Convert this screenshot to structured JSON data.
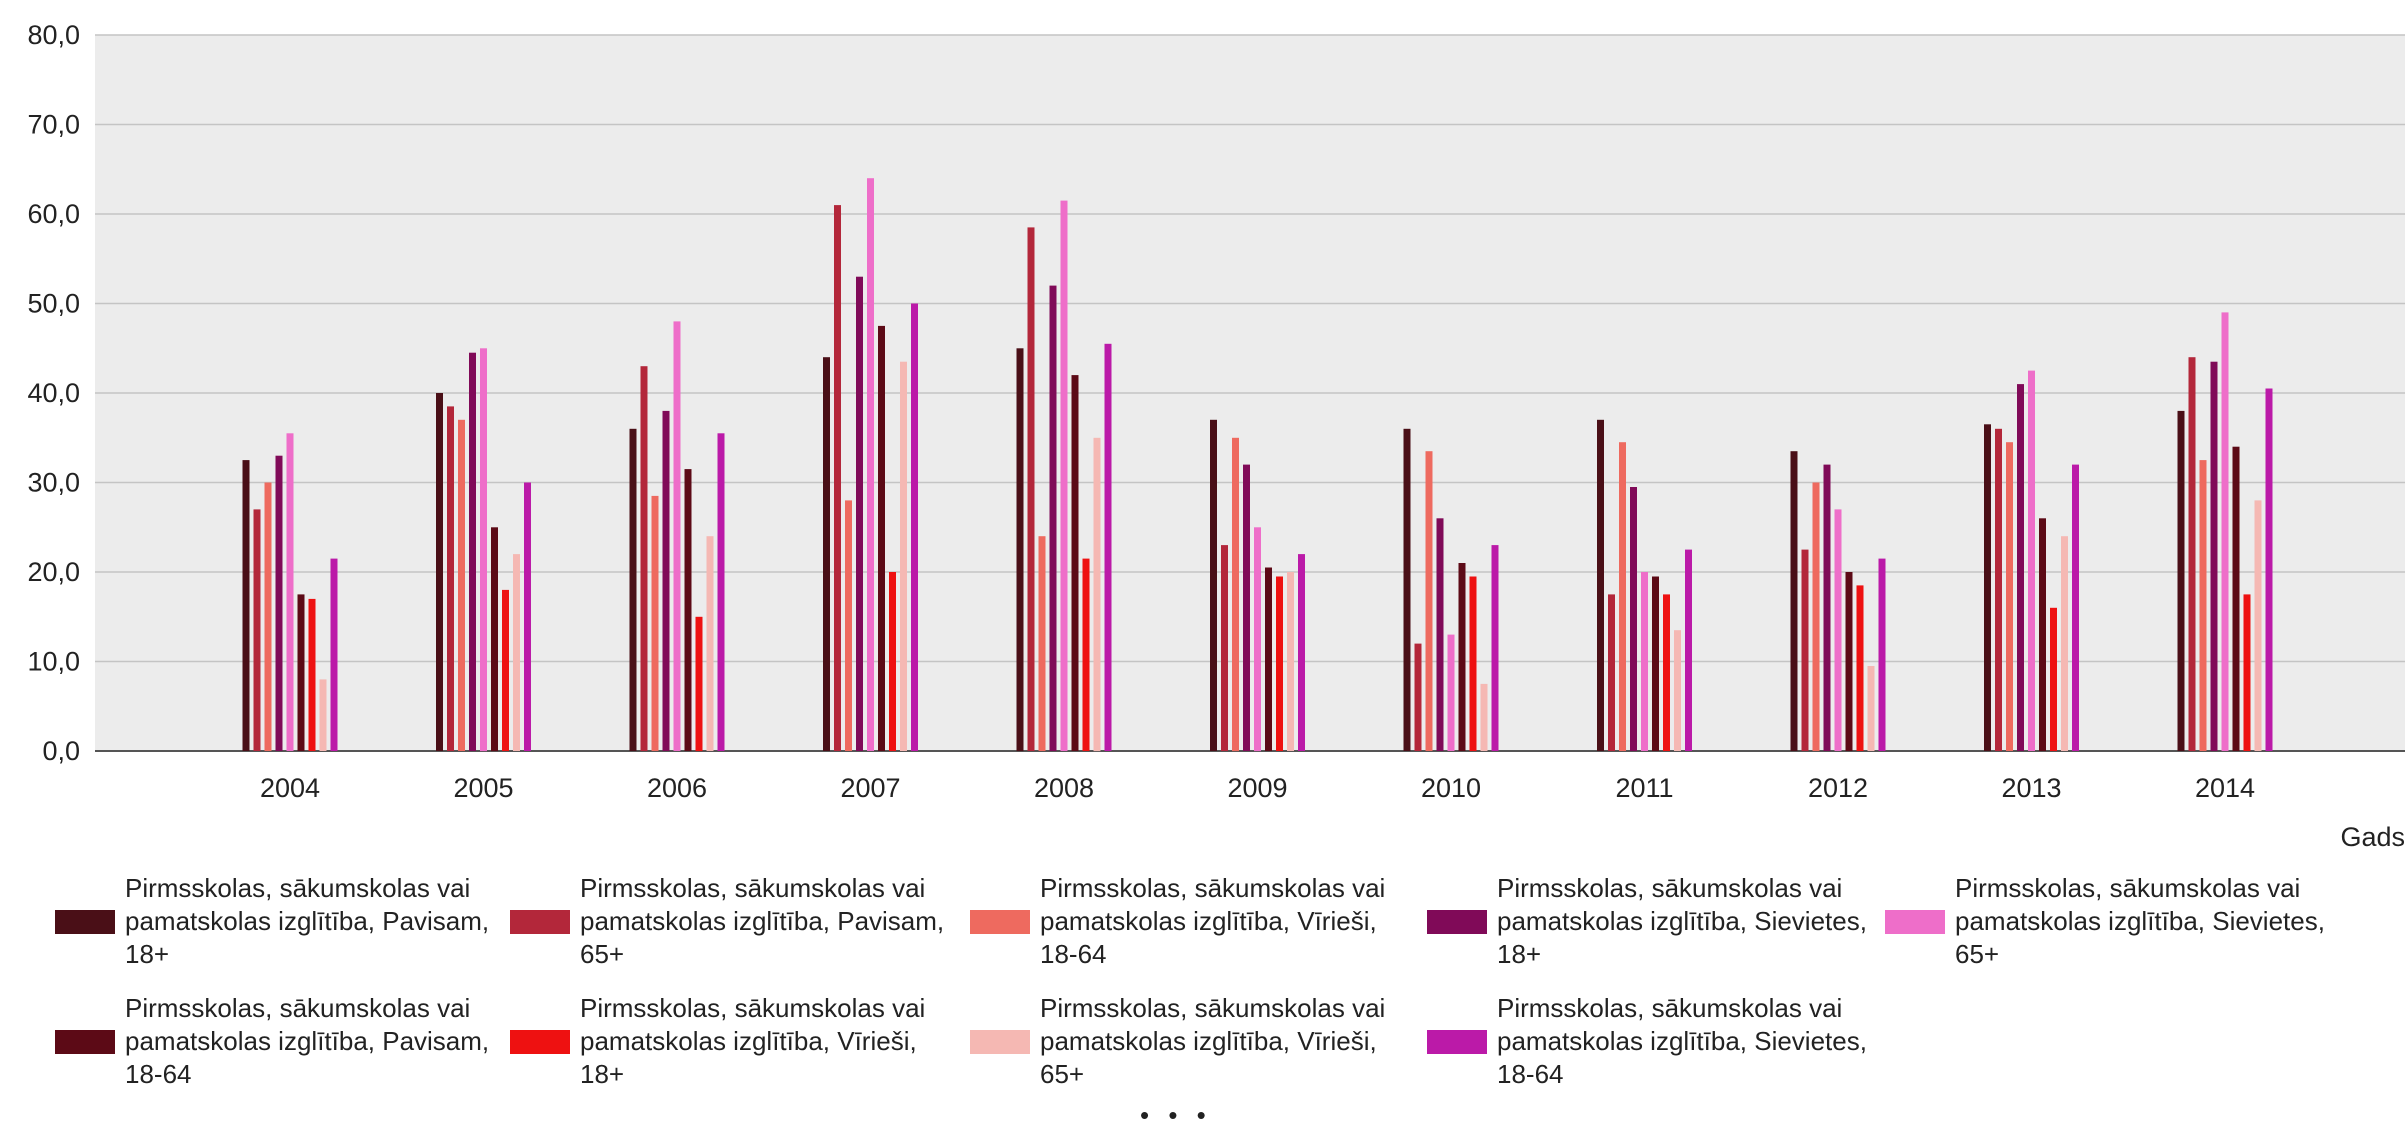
{
  "chart_data": {
    "type": "bar",
    "title": "",
    "xlabel": "Gads",
    "ylabel": "",
    "ylim": [
      0,
      80
    ],
    "yticks": [
      "0,0",
      "10,0",
      "20,0",
      "30,0",
      "40,0",
      "50,0",
      "60,0",
      "70,0",
      "80,0"
    ],
    "grid": true,
    "legend_position": "bottom",
    "more_indicator": "• • •",
    "categories": [
      "2004",
      "2005",
      "2006",
      "2007",
      "2008",
      "2009",
      "2010",
      "2011",
      "2012",
      "2013",
      "2014"
    ],
    "series_colors": [
      "#4a0f17",
      "#b3273a",
      "#ee6a5f",
      "#800a58",
      "#ee6ec9",
      "#5c0a16",
      "#ee1111",
      "#f5b8b3",
      "#bb1aa8"
    ],
    "series": [
      {
        "name": "Pirmsskolas, sākumskolas vai pamatskolas izglītība, Pavisam, 18+",
        "values": [
          32.5,
          40.0,
          36.0,
          44.0,
          45.0,
          37.0,
          36.0,
          37.0,
          33.5,
          36.5,
          38.0
        ]
      },
      {
        "name": "Pirmsskolas, sākumskolas vai pamatskolas izglītība, Pavisam, 65+",
        "values": [
          27.0,
          38.5,
          43.0,
          61.0,
          58.5,
          23.0,
          12.0,
          17.5,
          22.5,
          36.0,
          44.0
        ]
      },
      {
        "name": "Pirmsskolas, sākumskolas vai pamatskolas izglītība, Vīrieši, 18-64",
        "values": [
          30.0,
          37.0,
          28.5,
          28.0,
          24.0,
          35.0,
          33.5,
          34.5,
          30.0,
          34.5,
          32.5
        ]
      },
      {
        "name": "Pirmsskolas, sākumskolas vai pamatskolas izglītība, Sievietes, 18+",
        "values": [
          33.0,
          44.5,
          38.0,
          53.0,
          52.0,
          32.0,
          26.0,
          29.5,
          32.0,
          41.0,
          43.5
        ]
      },
      {
        "name": "Pirmsskolas, sākumskolas vai pamatskolas izglītība, Sievietes, 65+",
        "values": [
          35.5,
          45.0,
          48.0,
          64.0,
          61.5,
          25.0,
          13.0,
          20.0,
          27.0,
          42.5,
          49.0
        ]
      },
      {
        "name": "Pirmsskolas, sākumskolas vai pamatskolas izglītība, Pavisam, 18-64",
        "values": [
          17.5,
          25.0,
          31.5,
          47.5,
          42.0,
          20.5,
          21.0,
          19.5,
          20.0,
          26.0,
          34.0
        ]
      },
      {
        "name": "Pirmsskolas, sākumskolas vai pamatskolas izglītība, Vīrieši, 18+",
        "values": [
          17.0,
          18.0,
          15.0,
          20.0,
          21.5,
          19.5,
          19.5,
          17.5,
          18.5,
          16.0,
          17.5
        ]
      },
      {
        "name": "Pirmsskolas, sākumskolas vai pamatskolas izglītība, Vīrieši, 65+",
        "values": [
          8.0,
          22.0,
          24.0,
          43.5,
          35.0,
          20.0,
          7.5,
          13.5,
          9.5,
          24.0,
          28.0
        ]
      },
      {
        "name": "Pirmsskolas, sākumskolas vai pamatskolas izglītība, Sievietes, 18-64",
        "values": [
          21.5,
          30.0,
          35.5,
          50.0,
          45.5,
          22.0,
          23.0,
          22.5,
          21.5,
          32.0,
          40.5
        ]
      }
    ]
  }
}
